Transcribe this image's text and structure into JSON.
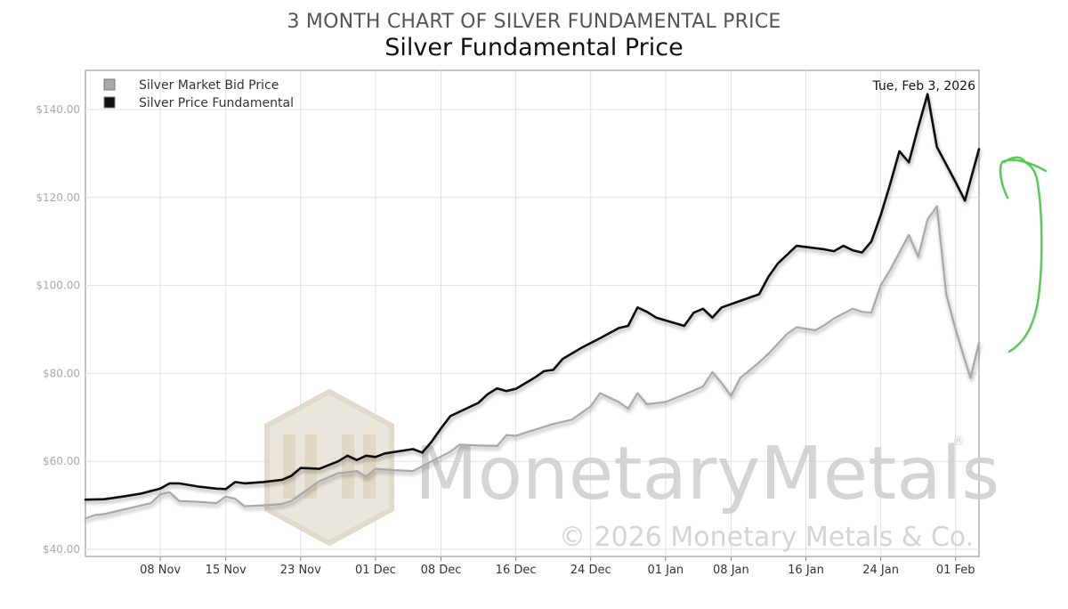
{
  "header": {
    "subtitle": "3 MONTH CHART OF SILVER FUNDAMENTAL PRICE",
    "title": "Silver Fundamental Price"
  },
  "watermark": {
    "brand": "MonetaryMetals",
    "registered": "®",
    "copyright": "© 2026 Monetary Metals & Co."
  },
  "annotation": {
    "color": "#55cc55",
    "description": "hand-drawn upward arrow"
  },
  "chart_data": {
    "type": "line",
    "title": "Silver Fundamental Price",
    "date_label": "Tue, Feb 3, 2026",
    "ylim": [
      40,
      150
    ],
    "y_ticks": [
      40,
      60,
      80,
      100,
      120,
      140
    ],
    "y_tick_labels": [
      "$40.00",
      "$60.00",
      "$80.00",
      "$100.00",
      "$120.00",
      "$140.00"
    ],
    "x_ticks": [
      {
        "label": "08 Nov",
        "day": 8
      },
      {
        "label": "15 Nov",
        "day": 15
      },
      {
        "label": "23 Nov",
        "day": 23
      },
      {
        "label": "01 Dec",
        "day": 31
      },
      {
        "label": "08 Dec",
        "day": 38
      },
      {
        "label": "16 Dec",
        "day": 46
      },
      {
        "label": "24 Dec",
        "day": 54
      },
      {
        "label": "01 Jan",
        "day": 62
      },
      {
        "label": "08 Jan",
        "day": 69
      },
      {
        "label": "16 Jan",
        "day": 77
      },
      {
        "label": "24 Jan",
        "day": 85
      },
      {
        "label": "01 Feb",
        "day": 93
      }
    ],
    "x_range": [
      0,
      95.5
    ],
    "grid": true,
    "legend_position": "top-left",
    "series": [
      {
        "name": "Silver Market Bid Price",
        "color": "#a8a8a8",
        "points": [
          [
            0,
            47
          ],
          [
            1,
            47.8
          ],
          [
            2,
            48
          ],
          [
            3,
            48.5
          ],
          [
            5,
            49.5
          ],
          [
            7,
            50.5
          ],
          [
            8,
            52.5
          ],
          [
            9,
            53
          ],
          [
            10,
            51
          ],
          [
            12,
            50.8
          ],
          [
            14,
            50.5
          ],
          [
            15,
            52
          ],
          [
            16,
            51.5
          ],
          [
            17,
            49.8
          ],
          [
            19,
            50
          ],
          [
            21,
            50.3
          ],
          [
            22,
            51
          ],
          [
            23,
            52.5
          ],
          [
            25,
            55.5
          ],
          [
            27,
            57.3
          ],
          [
            28,
            57.5
          ],
          [
            29,
            57.8
          ],
          [
            30,
            56.5
          ],
          [
            31,
            58.3
          ],
          [
            33,
            58
          ],
          [
            35,
            57.8
          ],
          [
            37,
            60
          ],
          [
            39,
            62.2
          ],
          [
            40,
            63.8
          ],
          [
            42,
            63.6
          ],
          [
            44,
            63.5
          ],
          [
            45,
            66
          ],
          [
            46,
            65.8
          ],
          [
            47,
            66.5
          ],
          [
            50,
            68.5
          ],
          [
            52,
            69.5
          ],
          [
            54,
            72.5
          ],
          [
            55,
            75.5
          ],
          [
            57,
            73.5
          ],
          [
            58,
            72
          ],
          [
            59,
            75.5
          ],
          [
            60,
            73
          ],
          [
            62,
            73.5
          ],
          [
            64,
            75.2
          ],
          [
            66,
            77
          ],
          [
            67,
            80.3
          ],
          [
            68,
            77.8
          ],
          [
            69,
            74.9
          ],
          [
            70,
            79
          ],
          [
            72,
            82.5
          ],
          [
            73,
            84.5
          ],
          [
            75,
            89
          ],
          [
            76,
            90.5
          ],
          [
            78,
            89.8
          ],
          [
            79,
            91
          ],
          [
            80,
            92.5
          ],
          [
            82,
            94.7
          ],
          [
            83,
            94
          ],
          [
            84,
            93.8
          ],
          [
            85,
            100
          ],
          [
            86,
            103.5
          ],
          [
            87,
            107.5
          ],
          [
            88,
            111.5
          ],
          [
            89,
            106.5
          ],
          [
            90,
            115
          ],
          [
            91,
            118
          ],
          [
            92,
            98
          ],
          [
            93,
            90
          ],
          [
            94,
            83
          ],
          [
            94.6,
            79
          ],
          [
            95.5,
            87
          ]
        ]
      },
      {
        "name": "Silver Price Fundamental",
        "color": "#111111",
        "points": [
          [
            0,
            51.3
          ],
          [
            2,
            51.4
          ],
          [
            4,
            52
          ],
          [
            6,
            52.7
          ],
          [
            8,
            53.8
          ],
          [
            9,
            55
          ],
          [
            10,
            55
          ],
          [
            12,
            54.3
          ],
          [
            14,
            53.8
          ],
          [
            15,
            53.7
          ],
          [
            16,
            55.3
          ],
          [
            17,
            55
          ],
          [
            19,
            55.3
          ],
          [
            21,
            55.8
          ],
          [
            22,
            56.7
          ],
          [
            23,
            58.5
          ],
          [
            25,
            58.3
          ],
          [
            27,
            60
          ],
          [
            28,
            61.3
          ],
          [
            29,
            60.3
          ],
          [
            30,
            61.3
          ],
          [
            31,
            61
          ],
          [
            32,
            61.8
          ],
          [
            35,
            62.8
          ],
          [
            36,
            62
          ],
          [
            37,
            64.5
          ],
          [
            38,
            67.5
          ],
          [
            39,
            70.3
          ],
          [
            42,
            73.3
          ],
          [
            43,
            75.3
          ],
          [
            44,
            76.6
          ],
          [
            45,
            76
          ],
          [
            46,
            76.5
          ],
          [
            48,
            79
          ],
          [
            49,
            80.5
          ],
          [
            50,
            80.8
          ],
          [
            51,
            83.3
          ],
          [
            53,
            85.8
          ],
          [
            55,
            88
          ],
          [
            57,
            90.3
          ],
          [
            58,
            90.8
          ],
          [
            59,
            95
          ],
          [
            60,
            94
          ],
          [
            61,
            92.7
          ],
          [
            64,
            90.8
          ],
          [
            65,
            93.8
          ],
          [
            66,
            94.7
          ],
          [
            67,
            92.7
          ],
          [
            68,
            95
          ],
          [
            70,
            96.5
          ],
          [
            72,
            98
          ],
          [
            73,
            102
          ],
          [
            74,
            105
          ],
          [
            76,
            109
          ],
          [
            79,
            108.2
          ],
          [
            80,
            107.8
          ],
          [
            81,
            109
          ],
          [
            82,
            108
          ],
          [
            83,
            107.5
          ],
          [
            84,
            110
          ],
          [
            85,
            116
          ],
          [
            86,
            123
          ],
          [
            87,
            130.5
          ],
          [
            88,
            128
          ],
          [
            89,
            136
          ],
          [
            90,
            143.5
          ],
          [
            91,
            131.5
          ],
          [
            92,
            127.5
          ],
          [
            93,
            123.5
          ],
          [
            94,
            119.3
          ],
          [
            95.5,
            131
          ]
        ]
      }
    ]
  }
}
